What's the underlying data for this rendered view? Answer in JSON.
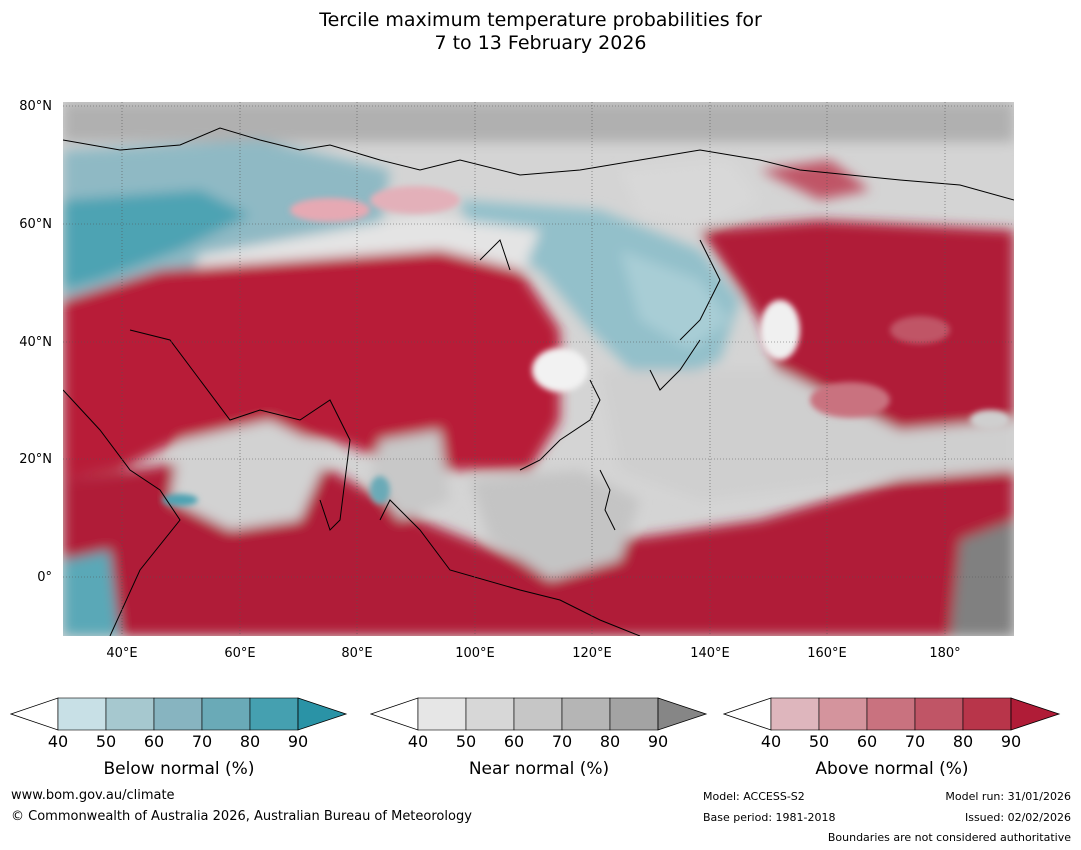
{
  "title": {
    "line1": "Tercile maximum temperature probabilities for",
    "line2": "7 to 13 February 2026"
  },
  "map": {
    "lat_labels": [
      "80°N",
      "60°N",
      "40°N",
      "20°N",
      "0°"
    ],
    "lon_labels": [
      "40°E",
      "60°E",
      "80°E",
      "100°E",
      "120°E",
      "140°E",
      "160°E",
      "180°"
    ]
  },
  "colorbars": [
    {
      "label": "Below normal (%)",
      "ticks": [
        "40",
        "50",
        "60",
        "70",
        "80",
        "90"
      ],
      "colors": [
        "#ffffff",
        "#c8e0e6",
        "#a6c8cf",
        "#87b4c0",
        "#6aaab7",
        "#45a0b0",
        "#2a93a6"
      ]
    },
    {
      "label": "Near normal (%)",
      "ticks": [
        "40",
        "50",
        "60",
        "70",
        "80",
        "90"
      ],
      "colors": [
        "#ffffff",
        "#e6e6e6",
        "#d7d7d7",
        "#c6c6c6",
        "#b5b5b5",
        "#a3a3a3",
        "#868686"
      ]
    },
    {
      "label": "Above normal (%)",
      "ticks": [
        "40",
        "50",
        "60",
        "70",
        "80",
        "90"
      ],
      "colors": [
        "#ffffff",
        "#deb6bd",
        "#d4949d",
        "#c9727f",
        "#c05566",
        "#b8354a",
        "#b01c37"
      ]
    }
  ],
  "footer": {
    "website": "www.bom.gov.au/climate",
    "copyright": "© Commonwealth of Australia 2026, Australian Bureau of Meteorology",
    "model": "Model: ACCESS-S2",
    "base_period": "Base period: 1981-2018",
    "model_run": "Model run: 31/01/2026",
    "issued": "Issued: 02/02/2026",
    "boundaries": "Boundaries are not considered authoritative"
  }
}
